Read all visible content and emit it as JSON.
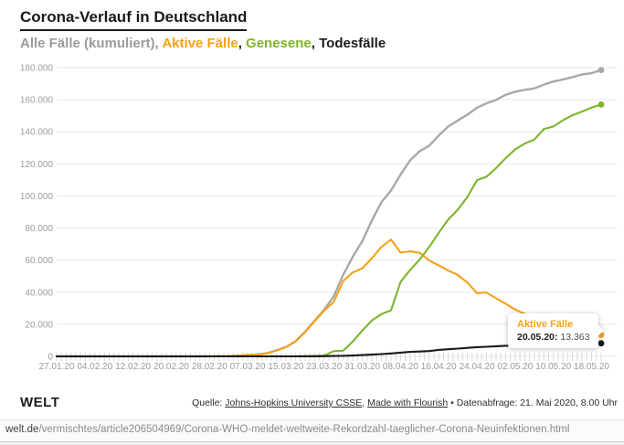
{
  "header": {
    "title": "Corona-Verlauf in Deutschland",
    "subtitle_segments": [
      {
        "name": "legend-alle-faelle",
        "text": "Alle Fälle (kumuliert)",
        "color": "#9b9b9b"
      },
      {
        "name": "legend-separator",
        "text": ", ",
        "color": "#9b9b9b"
      },
      {
        "name": "legend-aktive-faelle",
        "text": "Aktive Fälle",
        "color": "#f5a216"
      },
      {
        "name": "legend-separator",
        "text": ", ",
        "color": "#1a1a1a"
      },
      {
        "name": "legend-genesene",
        "text": "Genesene",
        "color": "#7db52b"
      },
      {
        "name": "legend-separator",
        "text": ", ",
        "color": "#1a1a1a"
      },
      {
        "name": "legend-todesfaelle",
        "text": "Todesfälle",
        "color": "#1a1a1a"
      }
    ]
  },
  "colors": {
    "gridline": "#e9e9e9",
    "day_tick": "#d8d8d8",
    "axis_text": "#9b9b9b",
    "accent_orange": "#f5a216",
    "accent_green": "#7db52b",
    "line_gray": "#a8a8a8",
    "line_black": "#1a1a1a"
  },
  "chart_data": {
    "type": "line",
    "title": "Corona-Verlauf in Deutschland",
    "xlabel": "",
    "ylabel": "",
    "grid": true,
    "legend_position": "subtitle",
    "ylim": [
      0,
      180000
    ],
    "y_ticks": [
      0,
      20000,
      40000,
      60000,
      80000,
      100000,
      120000,
      140000,
      160000,
      180000
    ],
    "y_tick_labels": [
      "0",
      "20.000",
      "40.000",
      "60.000",
      "80.000",
      "100.000",
      "120.000",
      "140.000",
      "160.000",
      "180.000"
    ],
    "x_tick_labels": [
      "27.01.20",
      "04.02.20",
      "12.02.20",
      "20.02.20",
      "28.02.20",
      "07.03.20",
      "15.03.20",
      "23.03.20",
      "31.03.20",
      "08.04.20",
      "16.04.20",
      "24.04.20",
      "02.05.20",
      "10.05.20",
      "18.05.20"
    ],
    "x_tick_day_step": 8,
    "total_days": 114,
    "dates": [
      "27.01.20",
      "29.01.20",
      "31.01.20",
      "02.02.20",
      "04.02.20",
      "06.02.20",
      "08.02.20",
      "10.02.20",
      "12.02.20",
      "14.02.20",
      "16.02.20",
      "18.02.20",
      "20.02.20",
      "22.02.20",
      "24.02.20",
      "26.02.20",
      "28.02.20",
      "01.03.20",
      "03.03.20",
      "05.03.20",
      "07.03.20",
      "09.03.20",
      "11.03.20",
      "13.03.20",
      "15.03.20",
      "17.03.20",
      "19.03.20",
      "21.03.20",
      "23.03.20",
      "25.03.20",
      "27.03.20",
      "29.03.20",
      "31.03.20",
      "02.04.20",
      "04.04.20",
      "06.04.20",
      "08.04.20",
      "10.04.20",
      "12.04.20",
      "14.04.20",
      "16.04.20",
      "18.04.20",
      "20.04.20",
      "22.04.20",
      "24.04.20",
      "26.04.20",
      "28.04.20",
      "30.04.20",
      "02.05.20",
      "04.05.20",
      "06.05.20",
      "08.05.20",
      "10.05.20",
      "12.05.20",
      "14.05.20",
      "16.05.20",
      "18.05.20",
      "20.05.20"
    ],
    "series": [
      {
        "name": "Alle Fälle (kumuliert)",
        "slug": "alle-faelle",
        "color": "#a8a8a8",
        "values": [
          1,
          4,
          5,
          10,
          12,
          12,
          13,
          14,
          16,
          16,
          16,
          16,
          16,
          16,
          16,
          27,
          48,
          130,
          196,
          482,
          799,
          1176,
          1908,
          3675,
          5795,
          9257,
          15320,
          22213,
          29056,
          37323,
          50871,
          62095,
          71808,
          84794,
          96092,
          103374,
          113296,
          122171,
          127854,
          131359,
          137698,
          143342,
          147065,
          150648,
          154999,
          157770,
          159912,
          163009,
          164967,
          166152,
          167007,
          169430,
          171324,
          172576,
          174098,
          175752,
          176551,
          178473
        ]
      },
      {
        "name": "Aktive Fälle",
        "slug": "aktive-faelle",
        "color": "#f5a216",
        "values": [
          1,
          4,
          5,
          10,
          12,
          12,
          13,
          14,
          15,
          15,
          15,
          4,
          2,
          2,
          2,
          12,
          32,
          114,
          180,
          465,
          779,
          1156,
          1880,
          3622,
          5738,
          9166,
          15163,
          21896,
          28480,
          33874,
          46982,
          52351,
          54933,
          61247,
          68248,
          72864,
          64647,
          65491,
          64532,
          59865,
          56646,
          53483,
          50703,
          45969,
          39439,
          39794,
          36198,
          32886,
          29155,
          26459,
          24788,
          20338,
          20475,
          17715,
          15937,
          15214,
          13507,
          13363
        ]
      },
      {
        "name": "Genesene",
        "slug": "genesene",
        "color": "#7db52b",
        "values": [
          0,
          0,
          0,
          0,
          0,
          0,
          0,
          0,
          1,
          1,
          1,
          12,
          14,
          14,
          14,
          15,
          16,
          16,
          16,
          16,
          18,
          18,
          25,
          46,
          46,
          67,
          113,
          233,
          453,
          3243,
          3547,
          9211,
          16100,
          22440,
          26400,
          28700,
          46300,
          53913,
          60300,
          68200,
          77000,
          85400,
          91500,
          99400,
          109800,
          112000,
          117400,
          123500,
          129000,
          132700,
          135100,
          141700,
          143300,
          147200,
          150300,
          152600,
          155041,
          156966
        ]
      },
      {
        "name": "Todesfälle",
        "slug": "todesfaelle",
        "color": "#1a1a1a",
        "values": [
          0,
          0,
          0,
          0,
          0,
          0,
          0,
          0,
          0,
          0,
          0,
          0,
          0,
          0,
          0,
          0,
          0,
          0,
          0,
          1,
          2,
          2,
          3,
          7,
          11,
          24,
          44,
          84,
          123,
          206,
          342,
          533,
          775,
          1107,
          1444,
          1810,
          2349,
          2767,
          3022,
          3294,
          4052,
          4459,
          4862,
          5279,
          5760,
          5976,
          6314,
          6623,
          6812,
          6993,
          7119,
          7392,
          7549,
          7661,
          7861,
          7938,
          8003,
          8144
        ]
      }
    ]
  },
  "tooltip": {
    "series": "Aktive Fälle",
    "series_color": "#f5a216",
    "date": "20.05.20:",
    "value": "13.363"
  },
  "footer": {
    "brand": "WELT",
    "source_prefix": "Quelle: ",
    "source_link1": "Johns-Hopkins University CSSE",
    "source_sep": ", ",
    "source_link2": "Made with Flourish",
    "source_suffix": " • Datenabfrage: 21. Mai 2020, 8.00 Uhr"
  },
  "url_bar": {
    "domain": "welt.de",
    "path": "/vermischtes/article206504969/Corona-WHO-meldet-weltweite-Rekordzahl-taeglicher-Corona-Neuinfektionen.html"
  }
}
